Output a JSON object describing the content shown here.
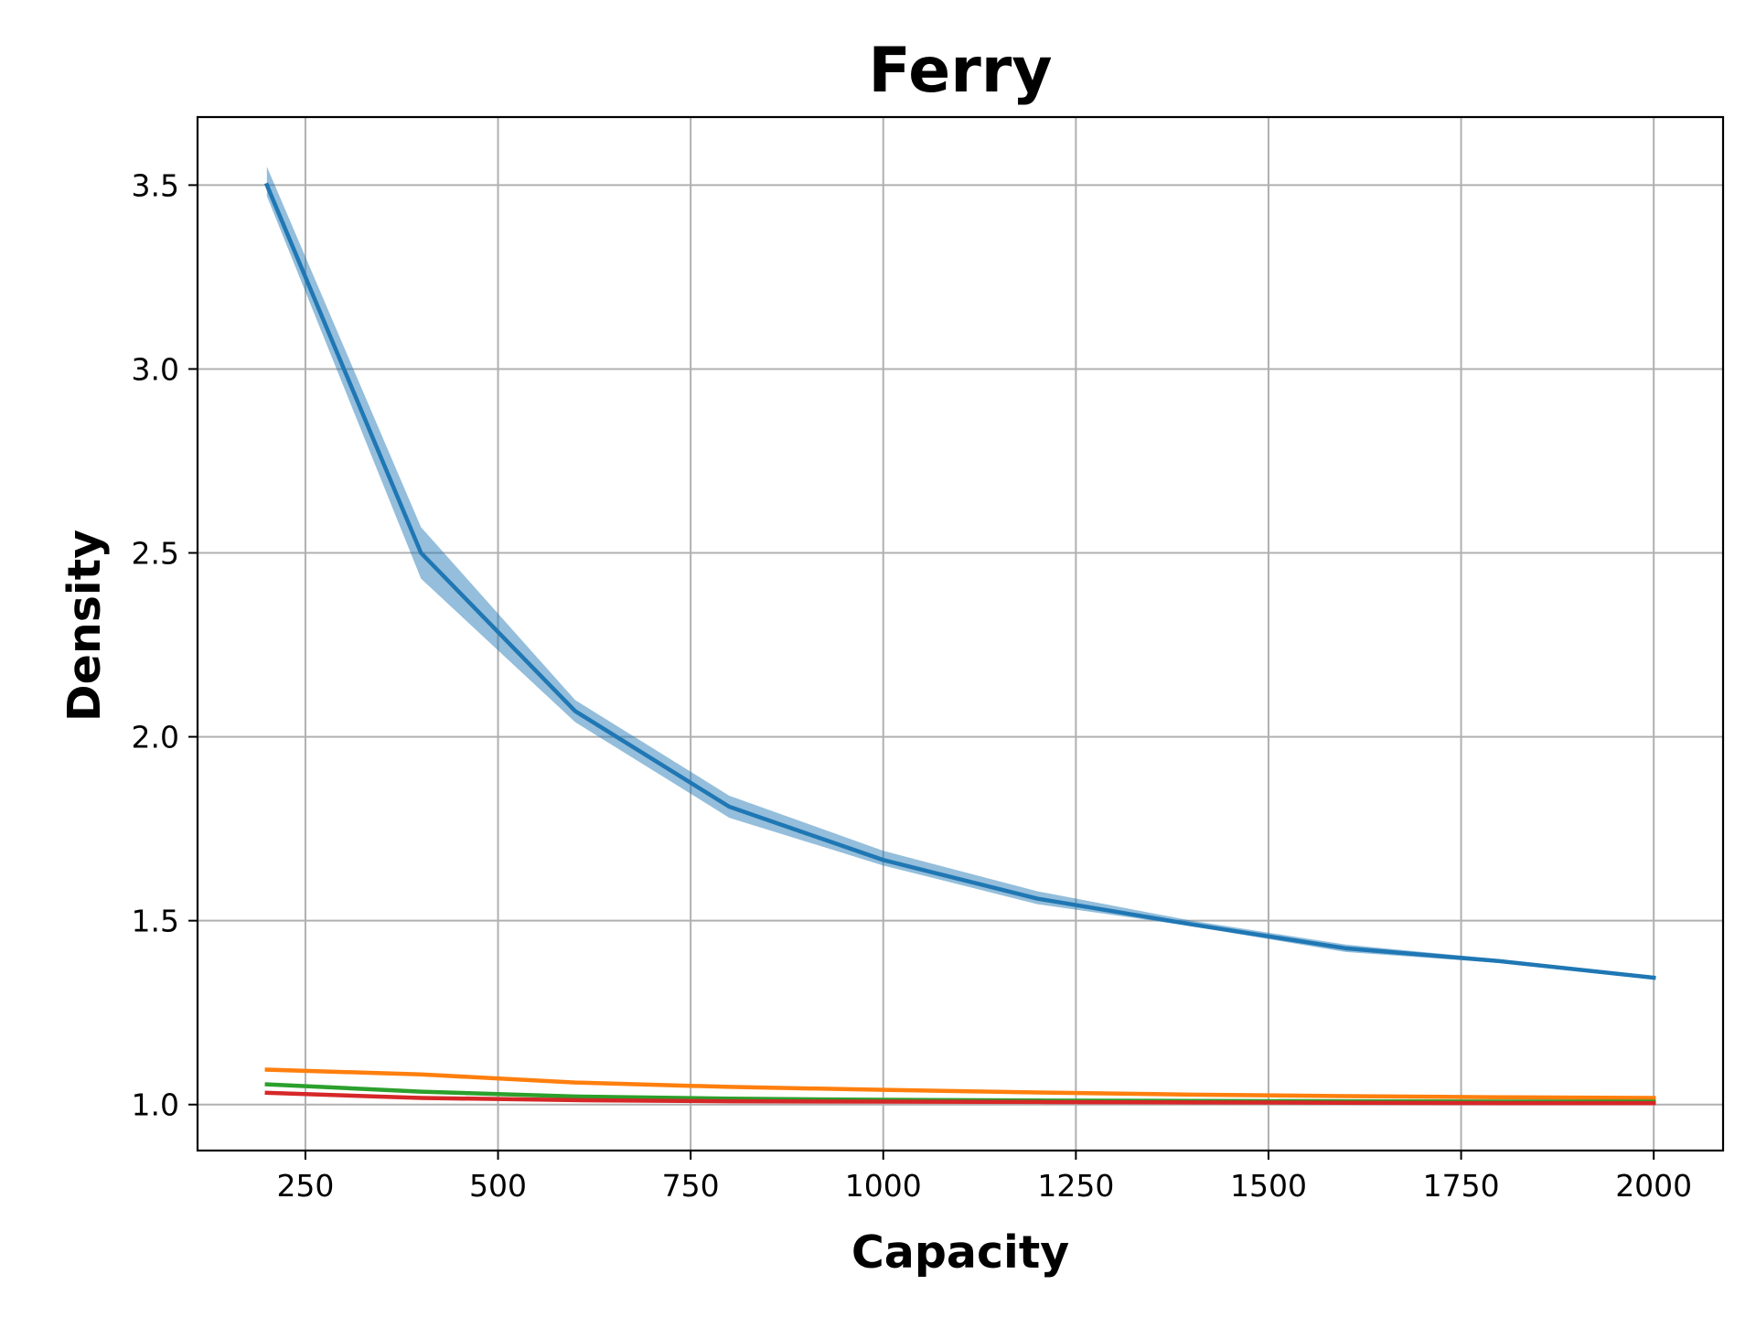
{
  "chart_data": {
    "type": "line",
    "title": "Ferry",
    "xlabel": "Capacity",
    "ylabel": "Density",
    "xlim": [
      110,
      2090
    ],
    "ylim": [
      0.875,
      3.685
    ],
    "xticks": [
      250,
      500,
      750,
      1000,
      1250,
      1500,
      1750,
      2000
    ],
    "xtick_labels": [
      "250",
      "500",
      "750",
      "1000",
      "1250",
      "1500",
      "1750",
      "2000"
    ],
    "yticks": [
      1.0,
      1.5,
      2.0,
      2.5,
      3.0,
      3.5
    ],
    "ytick_labels": [
      "1.0",
      "1.5",
      "2.0",
      "2.5",
      "3.0",
      "3.5"
    ],
    "grid": true,
    "legend": null,
    "series": [
      {
        "color": "#1f77b4",
        "band_color": "#1f77b4",
        "x": [
          200,
          400,
          600,
          800,
          1000,
          1200,
          1400,
          1600,
          1800,
          2000
        ],
        "y": [
          3.5,
          2.5,
          2.07,
          1.81,
          1.665,
          1.56,
          1.49,
          1.425,
          1.39,
          1.345
        ],
        "y_lower": [
          3.47,
          2.43,
          2.04,
          1.78,
          1.65,
          1.545,
          1.485,
          1.415,
          1.385,
          1.34
        ],
        "y_upper": [
          3.55,
          2.57,
          2.1,
          1.84,
          1.69,
          1.58,
          1.5,
          1.435,
          1.395,
          1.35
        ]
      },
      {
        "color": "#ff7f0e",
        "x": [
          200,
          400,
          600,
          800,
          1000,
          1200,
          1400,
          1600,
          1800,
          2000
        ],
        "y": [
          1.095,
          1.082,
          1.06,
          1.048,
          1.04,
          1.033,
          1.027,
          1.023,
          1.02,
          1.018
        ]
      },
      {
        "color": "#2ca02c",
        "x": [
          200,
          400,
          600,
          800,
          1000,
          1200,
          1400,
          1600,
          1800,
          2000
        ],
        "y": [
          1.055,
          1.035,
          1.022,
          1.016,
          1.013,
          1.011,
          1.01,
          1.009,
          1.008,
          1.008
        ]
      },
      {
        "color": "#d62728",
        "x": [
          200,
          400,
          600,
          800,
          1000,
          1200,
          1400,
          1600,
          1800,
          2000
        ],
        "y": [
          1.032,
          1.018,
          1.012,
          1.009,
          1.008,
          1.007,
          1.006,
          1.005,
          1.004,
          1.004
        ]
      }
    ],
    "colors": {
      "grid": "#b0b0b0",
      "axes": "#000000",
      "background": "#ffffff"
    }
  }
}
